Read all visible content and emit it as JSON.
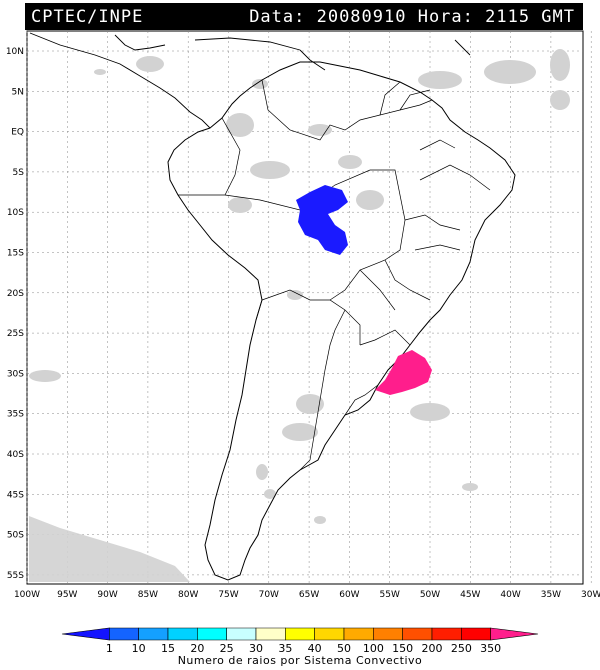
{
  "header": {
    "source": "CPTEC/INPE",
    "datetime": "Data: 20080910 Hora: 2115 GMT"
  },
  "map": {
    "lat_labels": [
      "10N",
      "5N",
      "EQ",
      "5S",
      "10S",
      "15S",
      "20S",
      "25S",
      "30S",
      "35S",
      "40S",
      "45S",
      "50S",
      "55S"
    ],
    "lon_labels": [
      "100W",
      "95W",
      "90W",
      "85W",
      "80W",
      "75W",
      "70W",
      "65W",
      "60W",
      "55W",
      "50W",
      "45W",
      "40W",
      "35W",
      "30W"
    ],
    "storms": [
      {
        "region": "Amazon / Mato Grosso",
        "color": "#1a1aff",
        "category": "1"
      },
      {
        "region": "Rio Grande do Sul / Uruguay coast",
        "color": "#ff2a7f",
        "category": "350"
      }
    ]
  },
  "colorbar": {
    "ticks": [
      "1",
      "10",
      "15",
      "20",
      "25",
      "30",
      "35",
      "40",
      "50",
      "100",
      "150",
      "200",
      "250",
      "350"
    ],
    "colors": [
      "#1414ff",
      "#1464ff",
      "#14a0ff",
      "#00d2ff",
      "#00ffff",
      "#c8ffff",
      "#ffffc8",
      "#ffff00",
      "#ffd700",
      "#ffaa00",
      "#ff8000",
      "#ff5000",
      "#ff1e00",
      "#ff0000",
      "#ff1e8c"
    ],
    "label": "Numero de raios por Sistema Convectivo"
  }
}
